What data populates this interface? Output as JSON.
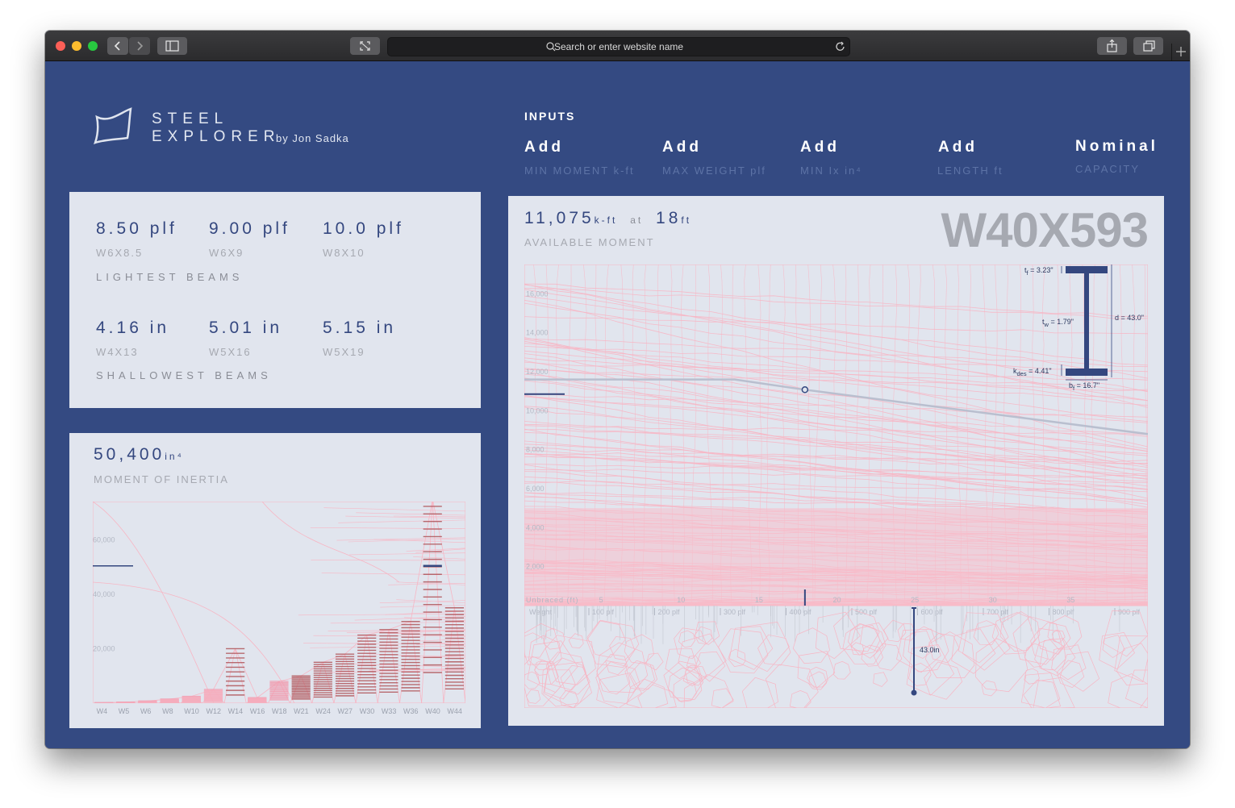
{
  "browser": {
    "url_placeholder": "Search or enter website name"
  },
  "brand": {
    "line1": "STEEL",
    "line2": "EXPLORER",
    "byline": "by Jon Sadka"
  },
  "inputs": {
    "heading": "INPUTS",
    "fields": [
      {
        "label": "Add",
        "sub": "MIN MOMENT k-ft"
      },
      {
        "label": "Add",
        "sub": "MAX WEIGHT plf"
      },
      {
        "label": "Add",
        "sub": "MIN Ix in⁴"
      },
      {
        "label": "Add",
        "sub": "LENGTH ft"
      },
      {
        "label": "Nominal",
        "sub": "CAPACITY"
      }
    ]
  },
  "lightest": {
    "title": "LIGHTEST BEAMS",
    "items": [
      {
        "value": "8.50 plf",
        "shape": "W6X8.5"
      },
      {
        "value": "9.00 plf",
        "shape": "W6X9"
      },
      {
        "value": "10.0 plf",
        "shape": "W8X10"
      }
    ]
  },
  "shallowest": {
    "title": "SHALLOWEST BEAMS",
    "items": [
      {
        "value": "4.16 in",
        "shape": "W4X13"
      },
      {
        "value": "5.01 in",
        "shape": "W5X16"
      },
      {
        "value": "5.15 in",
        "shape": "W5X19"
      }
    ]
  },
  "inertia": {
    "value": "50,400",
    "unit": "in⁴",
    "label": "MOMENT OF INERTIA"
  },
  "moment": {
    "value": "11,075",
    "unit": "k-ft",
    "at": "at",
    "length": "18",
    "length_unit": "ft",
    "label": "AVAILABLE MOMENT",
    "section": "W40X593"
  },
  "section_dims": {
    "tf": "= 3.23\"",
    "tw": "= 1.79\"",
    "d": "d = 43.0\"",
    "kdes": "= 4.41\"",
    "bf": "= 16.7\""
  },
  "depth_marker": "43.0in",
  "colors": {
    "background": "#344a82",
    "card": "#e1e5ee",
    "accent": "#34477f",
    "grid_pink": "#f7b6c4",
    "bar_dark": "#b0555a"
  },
  "chart_data": [
    {
      "type": "line",
      "title": "AVAILABLE MOMENT",
      "xlabel": "Unbraced (ft)",
      "ylabel": "",
      "x_ticks": [
        5,
        10,
        15,
        20,
        25,
        30,
        35
      ],
      "y_ticks": [
        2000,
        4000,
        6000,
        8000,
        10000,
        12000,
        14000,
        16000
      ],
      "y_tick_labels": [
        "2,000",
        "4,000",
        "6,000",
        "8,000",
        "10,000",
        "12,000",
        "14,000",
        "16,000"
      ],
      "xlim": [
        0,
        40
      ],
      "ylim": [
        0,
        17500
      ],
      "selected_series": {
        "name": "W40X593",
        "x": [
          0,
          13.5,
          18,
          40
        ],
        "y": [
          11600,
          11600,
          11075,
          8800
        ]
      },
      "selected_point": {
        "x": 18,
        "y": 11075
      },
      "threshold": 10850,
      "weight_ticks": [
        "Weight",
        "100 plf",
        "200 plf",
        "300 plf",
        "400 plf",
        "500 plf",
        "600 plf",
        "700 plf",
        "800 plf",
        "900 plf"
      ],
      "grid": true
    },
    {
      "type": "bar",
      "title": "MOMENT OF INERTIA",
      "categories": [
        "W4",
        "W5",
        "W6",
        "W8",
        "W10",
        "W12",
        "W14",
        "W16",
        "W18",
        "W21",
        "W24",
        "W27",
        "W30",
        "W33",
        "W36",
        "W40",
        "W44"
      ],
      "y_ticks": [
        20000,
        40000,
        60000
      ],
      "y_tick_labels": [
        "20,000",
        "40,000",
        "60,000"
      ],
      "ylim": [
        0,
        74000
      ],
      "group_max": [
        200,
        400,
        800,
        1500,
        2500,
        5000,
        20000,
        2000,
        8000,
        10000,
        15000,
        18000,
        25000,
        27000,
        30000,
        75000,
        35000
      ],
      "selected": {
        "category": "W40",
        "value": 50400
      },
      "grid": false
    }
  ]
}
